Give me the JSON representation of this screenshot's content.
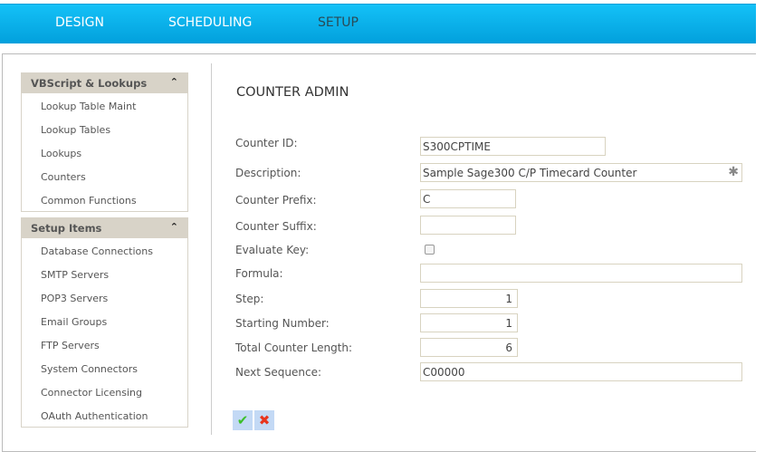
{
  "nav": {
    "items": [
      "DESIGN",
      "SCHEDULING",
      "SETUP"
    ],
    "active": "SETUP"
  },
  "sidebar": {
    "sections": [
      {
        "title": "VBScript & Lookups",
        "items": [
          "Lookup Table Maint",
          "Lookup Tables",
          "Lookups",
          "Counters",
          "Common Functions"
        ]
      },
      {
        "title": "Setup Items",
        "items": [
          "Database Connections",
          "SMTP Servers",
          "POP3 Servers",
          "Email Groups",
          "FTP Servers",
          "System Connectors",
          "Connector Licensing",
          "OAuth Authentication"
        ]
      }
    ]
  },
  "form": {
    "title": "COUNTER ADMIN",
    "counter_id": {
      "label": "Counter ID:",
      "value": "S300CPTIME"
    },
    "description": {
      "label": "Description:",
      "value": "Sample Sage300 C/P Timecard Counter"
    },
    "prefix": {
      "label": "Counter Prefix:",
      "value": "C"
    },
    "suffix": {
      "label": "Counter Suffix:",
      "value": ""
    },
    "evaluate_key": {
      "label": "Evaluate Key:",
      "checked": false
    },
    "formula": {
      "label": "Formula:",
      "value": ""
    },
    "step": {
      "label": "Step:",
      "value": "1"
    },
    "starting": {
      "label": "Starting Number:",
      "value": "1"
    },
    "length": {
      "label": "Total Counter Length:",
      "value": "6"
    },
    "next": {
      "label": "Next Sequence:",
      "value": "C00000"
    }
  },
  "colors": {
    "nav": "#02a0dc",
    "sidebar_header": "#d8d3c8",
    "button_bg": "#c3d9f5"
  }
}
